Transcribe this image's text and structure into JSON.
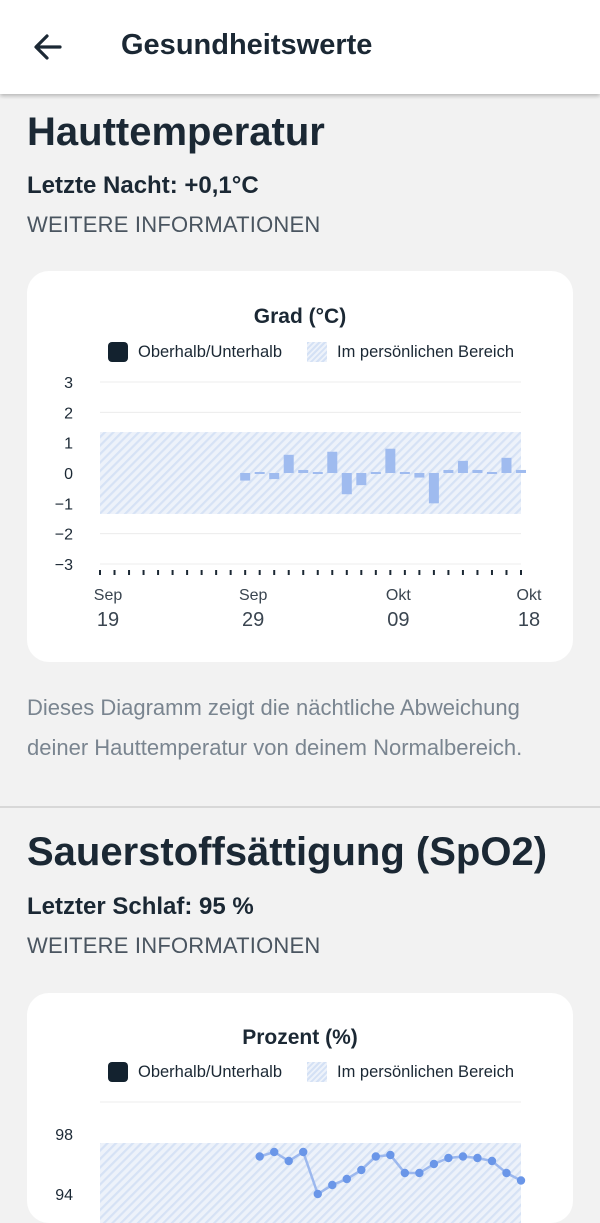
{
  "appbar": {
    "title": "Gesundheitswerte",
    "back_icon": "arrow-left-icon"
  },
  "skin_temp": {
    "title": "Hauttemperatur",
    "subtitle": "Letzte Nacht: +0,1°C",
    "more_info": "WEITERE INFORMATIONEN",
    "description": "Dieses Diagramm zeigt die nächtliche Abweichung deiner Hauttemperatur von deinem Normalbereich."
  },
  "spo2": {
    "title": "Sauerstoffsättigung (SpO2)",
    "subtitle": "Letzter Schlaf: 95 %",
    "more_info": "WEITERE INFORMATIONEN"
  },
  "colors": {
    "bar": "#9fbbef",
    "line": "#6a96e8",
    "band": "#dce7f6",
    "text": "#1b2834",
    "muted": "#7a8590"
  },
  "chart_data": [
    {
      "type": "bar",
      "title": "Grad (°C)",
      "legend": [
        "Oberhalb/Unterhalb",
        "Im persönlichen Bereich"
      ],
      "y_ticks": [
        "3",
        "2",
        "1",
        "0",
        "−1",
        "−2",
        "−3"
      ],
      "ylim": [
        -3,
        3
      ],
      "band": [
        -1.35,
        1.35
      ],
      "x_labels": [
        {
          "month": "Sep",
          "day": "19"
        },
        {
          "month": "Sep",
          "day": "29"
        },
        {
          "month": "Okt",
          "day": "09"
        },
        {
          "month": "Okt",
          "day": "18"
        }
      ],
      "x_label_days": [
        0,
        10,
        20,
        29
      ],
      "days": 30,
      "series": [
        {
          "day": [
            10,
            11,
            12,
            13,
            14,
            15,
            16,
            17,
            18,
            19,
            20,
            21,
            22,
            23,
            24,
            25,
            26,
            27,
            28,
            29
          ],
          "values": [
            -0.25,
            0.05,
            -0.2,
            0.6,
            0.1,
            0,
            0.7,
            -0.7,
            -0.4,
            -0.05,
            0.8,
            0,
            -0.15,
            -1.0,
            0.1,
            0.4,
            0.1,
            0,
            0.5,
            0.1
          ]
        }
      ]
    },
    {
      "type": "line",
      "title": "Prozent (%)",
      "legend": [
        "Oberhalb/Unterhalb",
        "Im persönlichen Bereich"
      ],
      "y_ticks": [
        "98",
        "94"
      ],
      "ylim": [
        94,
        98
      ],
      "band": [
        94,
        97.4
      ],
      "x": [
        11,
        12,
        13,
        14,
        15,
        16,
        17,
        18,
        19,
        20,
        21,
        22,
        23,
        24,
        25,
        26,
        27,
        28,
        29
      ],
      "values": [
        96.5,
        96.8,
        96.2,
        96.8,
        94.0,
        94.6,
        95.0,
        95.6,
        96.5,
        96.6,
        95.4,
        95.4,
        96.0,
        96.4,
        96.5,
        96.4,
        96.2,
        95.4,
        94.9
      ]
    }
  ]
}
